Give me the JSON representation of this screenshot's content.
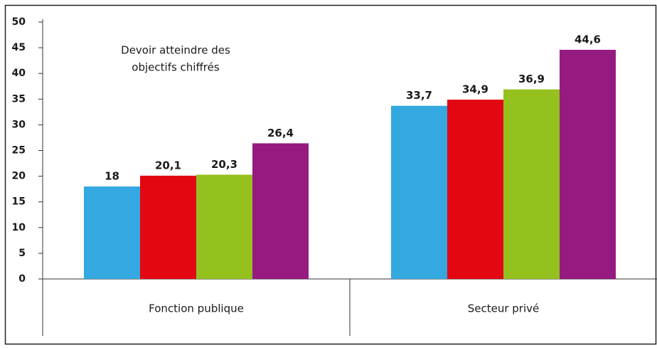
{
  "chart_data": {
    "type": "bar",
    "annotation": [
      "Devoir atteindre des",
      "objectifs chiffrés"
    ],
    "categories": [
      "Fonction publique",
      "Secteur privé"
    ],
    "series": [
      {
        "color": "#34a8e0",
        "values": [
          18,
          33.7
        ],
        "value_labels": [
          "18",
          "33,7"
        ]
      },
      {
        "color": "#e30613",
        "values": [
          20.1,
          34.9
        ],
        "value_labels": [
          "20,1",
          "34,9"
        ]
      },
      {
        "color": "#95c11f",
        "values": [
          20.3,
          36.9
        ],
        "value_labels": [
          "20,3",
          "36,9"
        ]
      },
      {
        "color": "#951b81",
        "values": [
          26.4,
          44.6
        ],
        "value_labels": [
          "26,4",
          "44,6"
        ]
      }
    ],
    "ylim": [
      0,
      50
    ],
    "yticks": [
      0,
      5,
      10,
      15,
      20,
      25,
      30,
      35,
      40,
      45,
      50
    ],
    "grid": false
  }
}
